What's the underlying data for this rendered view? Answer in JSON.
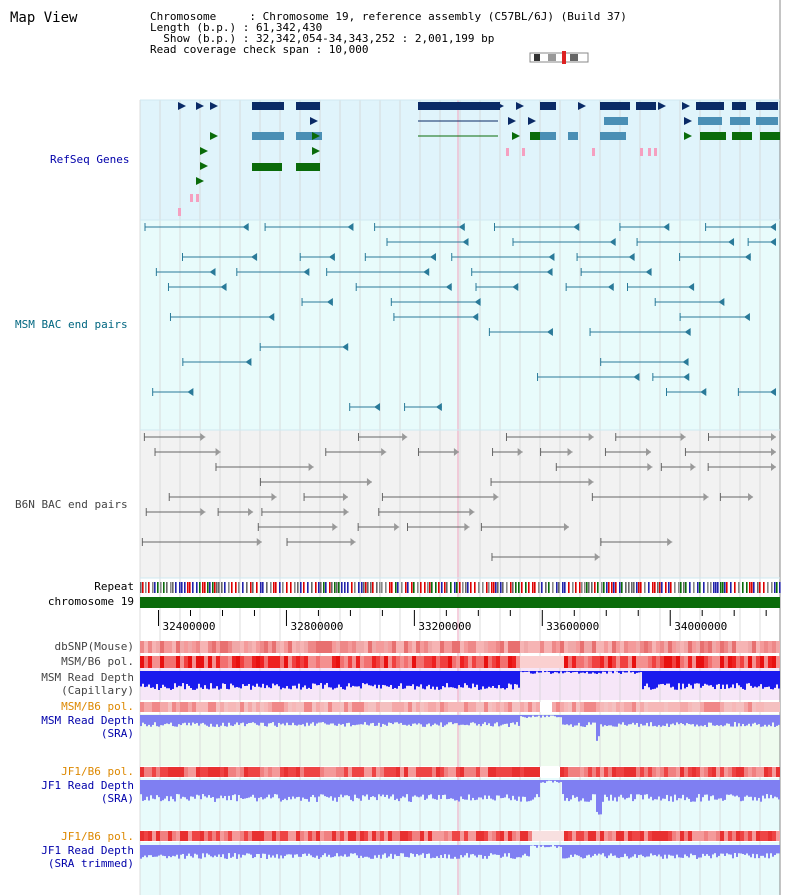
{
  "header": {
    "title": "Map View",
    "chromosome_line": "Chromosome     : Chromosome 19, reference assembly (C57BL/6J) (Build 37)",
    "length_line": "Length (b.p.) : 61,342,430",
    "show_line": "  Show (b.p.) : 32,342,054-34,343,252 : 2,001,199 bp",
    "coverage_line": "Read coverage check span : 10,000"
  },
  "tracks": {
    "refseq": "RefSeq Genes",
    "msm_bac": "MSM BAC end pairs",
    "b6n_bac": "B6N BAC end pairs",
    "repeat": "Repeat",
    "chromosome": "chromosome 19",
    "dbsnp": "dbSNP(Mouse)",
    "msm_b6_pol": "MSM/B6 pol.",
    "msm_depth_cap_1": "MSM Read Depth",
    "msm_depth_cap_2": "(Capillary)",
    "msm_b6_pol_2": "MSM/B6 pol.",
    "msm_depth_sra_1": "MSM Read Depth",
    "msm_depth_sra_2": "(SRA)",
    "jf1_pol_1": "JF1/B6 pol.",
    "jf1_depth_sra_1": "JF1 Read Depth",
    "jf1_depth_sra_2": "(SRA)",
    "jf1_pol_2": "JF1/B6 pol.",
    "jf1_depth_trim_1": "JF1 Read Depth",
    "jf1_depth_trim_2": "(SRA trimmed)"
  },
  "axis": {
    "ticks": [
      {
        "pos": 32400000,
        "label": "32400000"
      },
      {
        "pos": 32800000,
        "label": "32800000"
      },
      {
        "pos": 33200000,
        "label": "33200000"
      },
      {
        "pos": 33600000,
        "label": "33600000"
      },
      {
        "pos": 34000000,
        "label": "34000000"
      }
    ],
    "start": 32342054,
    "end": 34343252
  },
  "colors": {
    "refseq_bg": "#e0f4fb",
    "msm_bg": "#e8fbfb",
    "b6n_bg": "#f2f2f2",
    "navy": "#0a2a66",
    "steel": "#4a8fb5",
    "green": "#0a6b0a",
    "pink": "#f5a0c0",
    "msm_pair": "#2a7a99",
    "b6n_pair": "#666666",
    "chrom": "#0a6b0a",
    "depth_dark": "#1a1aee",
    "depth_light": "#7f7ff2",
    "label_blue": "#0000aa",
    "label_teal": "#006680",
    "label_gray": "#444444",
    "label_orange": "#dd8800"
  }
}
